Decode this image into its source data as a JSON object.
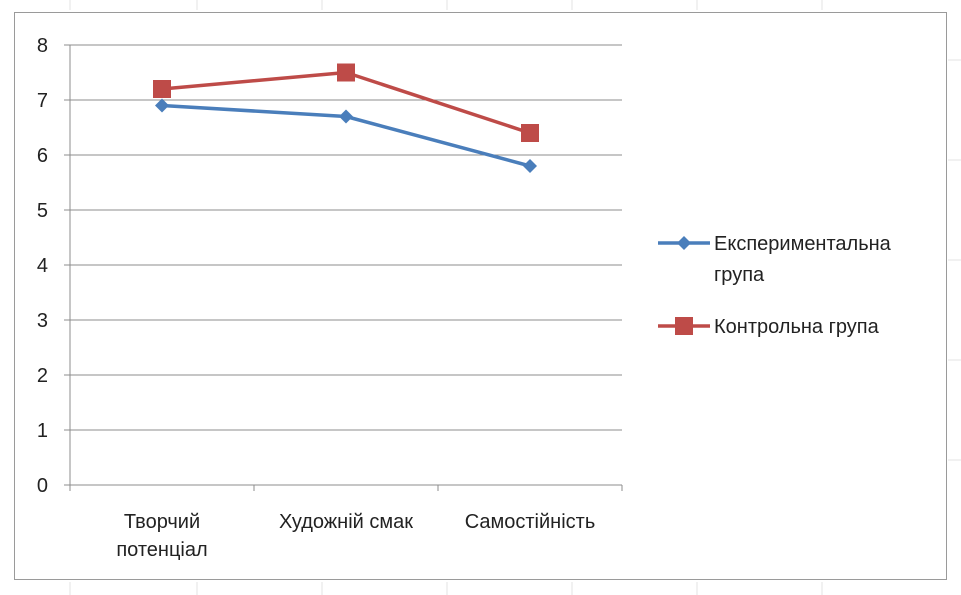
{
  "chart_data": {
    "type": "line",
    "categories": [
      "Творчий потенціал",
      "Художній смак",
      "Самостійність"
    ],
    "category_lines": [
      [
        "Творчий",
        "потенціал"
      ],
      [
        "Художній смак"
      ],
      [
        "Самостійність"
      ]
    ],
    "series": [
      {
        "name": "Експериментальна група",
        "name_lines": [
          "Експериментальна",
          "група"
        ],
        "values": [
          6.9,
          6.7,
          5.8
        ],
        "color": "#4a7ebb",
        "marker": "diamond"
      },
      {
        "name": "Контрольна група",
        "name_lines": [
          "Контрольна група"
        ],
        "values": [
          7.2,
          7.5,
          6.4
        ],
        "color": "#be4b48",
        "marker": "square"
      }
    ],
    "yticks": [
      "0",
      "1",
      "2",
      "3",
      "4",
      "5",
      "6",
      "7",
      "8"
    ],
    "ylim": [
      0,
      8
    ],
    "grid": true,
    "legend_position": "right"
  }
}
